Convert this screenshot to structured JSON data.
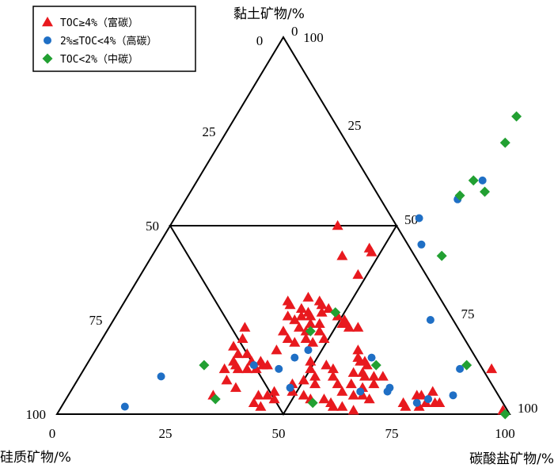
{
  "chart_data": {
    "type": "scatter",
    "subtype": "ternary",
    "axes": {
      "clay": {
        "title": "黏土矿物/%",
        "ticks": [
          {
            "v": 0,
            "label": "0"
          },
          {
            "v": 25,
            "label": "25"
          },
          {
            "v": 50,
            "label": "50"
          },
          {
            "v": 75,
            "label": "75"
          },
          {
            "v": 100,
            "label": "100"
          }
        ]
      },
      "silica": {
        "title": "硅质矿物/%"
      },
      "carbonate": {
        "title": "碳酸盐矿物/%"
      },
      "left_ticks": [
        {
          "v": 25,
          "label": "25"
        },
        {
          "v": 50,
          "label": "50"
        },
        {
          "v": 75,
          "label": "75"
        },
        {
          "v": 100,
          "label": "100"
        }
      ],
      "bottom_ticks": [
        {
          "v": 0,
          "label": "0"
        },
        {
          "v": 25,
          "label": "25"
        },
        {
          "v": 50,
          "label": "50"
        },
        {
          "v": 75,
          "label": "75"
        },
        {
          "v": 100,
          "label": "100"
        }
      ],
      "right_ticks": [
        {
          "v": 0,
          "label": "0"
        },
        {
          "v": 25,
          "label": "25"
        },
        {
          "v": 50,
          "label": "50"
        },
        {
          "v": 75,
          "label": "75"
        },
        {
          "v": 100,
          "label": "100"
        }
      ]
    },
    "legend_position": "top-left",
    "series": [
      {
        "name": "TOC≥4%（富碳）",
        "marker": "triangle",
        "color": "#e8191e",
        "points": [
          {
            "carbonate": 42,
            "clay": 42
          },
          {
            "carbonate": 48,
            "clay": 37
          },
          {
            "carbonate": 47,
            "clay": 44
          },
          {
            "carbonate": 48,
            "clay": 43
          },
          {
            "carbonate": 37,
            "clay": 50
          },
          {
            "carbonate": 37,
            "clay": 29
          },
          {
            "carbonate": 36,
            "clay": 30
          },
          {
            "carbonate": 40,
            "clay": 31
          },
          {
            "carbonate": 43,
            "clay": 30
          },
          {
            "carbonate": 40,
            "clay": 28
          },
          {
            "carbonate": 42,
            "clay": 27
          },
          {
            "carbonate": 46,
            "clay": 28
          },
          {
            "carbonate": 45,
            "clay": 27
          },
          {
            "carbonate": 44,
            "clay": 29
          },
          {
            "carbonate": 41,
            "clay": 26
          },
          {
            "carbonate": 40,
            "clay": 25
          },
          {
            "carbonate": 43,
            "clay": 26
          },
          {
            "carbonate": 44,
            "clay": 24
          },
          {
            "carbonate": 46,
            "clay": 24
          },
          {
            "carbonate": 49,
            "clay": 26
          },
          {
            "carbonate": 51,
            "clay": 24
          },
          {
            "carbonate": 51,
            "clay": 25
          },
          {
            "carbonate": 52,
            "clay": 24
          },
          {
            "carbonate": 53,
            "clay": 23
          },
          {
            "carbonate": 55,
            "clay": 23
          },
          {
            "carbonate": 38,
            "clay": 26
          },
          {
            "carbonate": 42,
            "clay": 23
          },
          {
            "carbonate": 44,
            "clay": 22
          },
          {
            "carbonate": 47,
            "clay": 22
          },
          {
            "carbonate": 39,
            "clay": 22
          },
          {
            "carbonate": 41,
            "clay": 20
          },
          {
            "carbonate": 43,
            "clay": 19
          },
          {
            "carbonate": 45,
            "clay": 20
          },
          {
            "carbonate": 47,
            "clay": 19
          },
          {
            "carbonate": 49,
            "clay": 20
          },
          {
            "carbonate": 40,
            "clay": 17
          },
          {
            "carbonate": 30,
            "clay": 23
          },
          {
            "carbonate": 31,
            "clay": 20
          },
          {
            "carbonate": 30,
            "clay": 18
          },
          {
            "carbonate": 32,
            "clay": 16
          },
          {
            "carbonate": 34,
            "clay": 16
          },
          {
            "carbonate": 32,
            "clay": 14
          },
          {
            "carbonate": 33,
            "clay": 13
          },
          {
            "carbonate": 36,
            "clay": 14
          },
          {
            "carbonate": 38,
            "clay": 14
          },
          {
            "carbonate": 39,
            "clay": 13
          },
          {
            "carbonate": 31,
            "clay": 12
          },
          {
            "carbonate": 34,
            "clay": 12
          },
          {
            "carbonate": 36,
            "clay": 12
          },
          {
            "carbonate": 38,
            "clay": 12
          },
          {
            "carbonate": 40,
            "clay": 13
          },
          {
            "carbonate": 49,
            "clay": 14
          },
          {
            "carbonate": 50,
            "clay": 12
          },
          {
            "carbonate": 53,
            "clay": 13
          },
          {
            "carbonate": 55,
            "clay": 12
          },
          {
            "carbonate": 50,
            "clay": 9
          },
          {
            "carbonate": 52,
            "clay": 10
          },
          {
            "carbonate": 53,
            "clay": 8
          },
          {
            "carbonate": 56,
            "clay": 10
          },
          {
            "carbonate": 48,
            "clay": 8
          },
          {
            "carbonate": 49,
            "clay": 6
          },
          {
            "carbonate": 52,
            "clay": 5
          },
          {
            "carbonate": 54,
            "clay": 4
          },
          {
            "carbonate": 57,
            "clay": 4
          },
          {
            "carbonate": 59,
            "clay": 3
          },
          {
            "carbonate": 33,
            "clay": 9
          },
          {
            "carbonate": 36,
            "clay": 7
          },
          {
            "carbonate": 42,
            "clay": 5
          },
          {
            "carbonate": 42,
            "clay": 3
          },
          {
            "carbonate": 44,
            "clay": 2
          },
          {
            "carbonate": 32,
            "clay": 5
          },
          {
            "carbonate": 44,
            "clay": 5
          },
          {
            "carbonate": 46,
            "clay": 4
          },
          {
            "carbonate": 45,
            "clay": 6
          },
          {
            "carbonate": 58,
            "clay": 17
          },
          {
            "carbonate": 59,
            "clay": 15
          },
          {
            "carbonate": 60,
            "clay": 14
          },
          {
            "carbonate": 61,
            "clay": 14
          },
          {
            "carbonate": 62,
            "clay": 13
          },
          {
            "carbonate": 60,
            "clay": 11
          },
          {
            "carbonate": 62,
            "clay": 11
          },
          {
            "carbonate": 63,
            "clay": 10
          },
          {
            "carbonate": 65,
            "clay": 10
          },
          {
            "carbonate": 67,
            "clay": 10
          },
          {
            "carbonate": 58,
            "clay": 8
          },
          {
            "carbonate": 61,
            "clay": 8
          },
          {
            "carbonate": 64,
            "clay": 7
          },
          {
            "carbonate": 66,
            "clay": 8
          },
          {
            "carbonate": 60,
            "clay": 6
          },
          {
            "carbonate": 63,
            "clay": 5
          },
          {
            "carbonate": 65,
            "clay": 5
          },
          {
            "carbonate": 67,
            "clay": 4
          },
          {
            "carbonate": 60,
            "clay": 2
          },
          {
            "carbonate": 62,
            "clay": 2
          },
          {
            "carbonate": 65,
            "clay": 1
          },
          {
            "carbonate": 77,
            "clay": 5
          },
          {
            "carbonate": 78,
            "clay": 5
          },
          {
            "carbonate": 80,
            "clay": 6
          },
          {
            "carbonate": 80,
            "clay": 3
          },
          {
            "carbonate": 82,
            "clay": 3
          },
          {
            "carbonate": 83,
            "clay": 3
          },
          {
            "carbonate": 75,
            "clay": 3
          },
          {
            "carbonate": 79,
            "clay": 2
          },
          {
            "carbonate": 76,
            "clay": 2
          },
          {
            "carbonate": 90,
            "clay": 12
          },
          {
            "carbonate": 98,
            "clay": 1
          }
        ]
      },
      {
        "name": "2%≤TOC<4%（高碳）",
        "marker": "circle",
        "color": "#1f6fc5",
        "points": [
          {
            "carbonate": 62,
            "clay": 15
          },
          {
            "carbonate": 70,
            "clay": 7
          },
          {
            "carbonate": 70,
            "clay": 25
          },
          {
            "carbonate": 58,
            "clay": 45
          },
          {
            "carbonate": 43,
            "clay": 12
          },
          {
            "carbonate": 45,
            "clay": 15
          },
          {
            "carbonate": 47,
            "clay": 17
          },
          {
            "carbonate": 37,
            "clay": 13
          },
          {
            "carbonate": 48,
            "clay": 7
          },
          {
            "carbonate": 64,
            "clay": 6
          },
          {
            "carbonate": 70,
            "clay": 6
          },
          {
            "carbonate": 83,
            "clay": 12
          },
          {
            "carbonate": 80,
            "clay": 4
          },
          {
            "carbonate": 85,
            "clay": 5
          },
          {
            "carbonate": 78,
            "clay": 3
          },
          {
            "carbonate": 18,
            "clay": 10
          },
          {
            "carbonate": 14,
            "clay": 2
          },
          {
            "carbonate": 54,
            "clay": 52
          },
          {
            "carbonate": 60,
            "clay": 57
          },
          {
            "carbonate": 63,
            "clay": 62
          }
        ]
      },
      {
        "name": "TOC<2%（中碳）",
        "marker": "diamond",
        "color": "#22a032",
        "points": [
          {
            "carbonate": 62,
            "clay": 79
          },
          {
            "carbonate": 63,
            "clay": 72
          },
          {
            "carbonate": 61,
            "clay": 62
          },
          {
            "carbonate": 60,
            "clay": 58
          },
          {
            "carbonate": 65,
            "clay": 59
          },
          {
            "carbonate": 64,
            "clay": 42
          },
          {
            "carbonate": 48,
            "clay": 27
          },
          {
            "carbonate": 45,
            "clay": 22
          },
          {
            "carbonate": 64,
            "clay": 13
          },
          {
            "carbonate": 26,
            "clay": 13
          },
          {
            "carbonate": 33,
            "clay": 4
          },
          {
            "carbonate": 55,
            "clay": 3
          },
          {
            "carbonate": 84,
            "clay": 13
          },
          {
            "carbonate": 99,
            "clay": 0
          }
        ]
      }
    ]
  }
}
